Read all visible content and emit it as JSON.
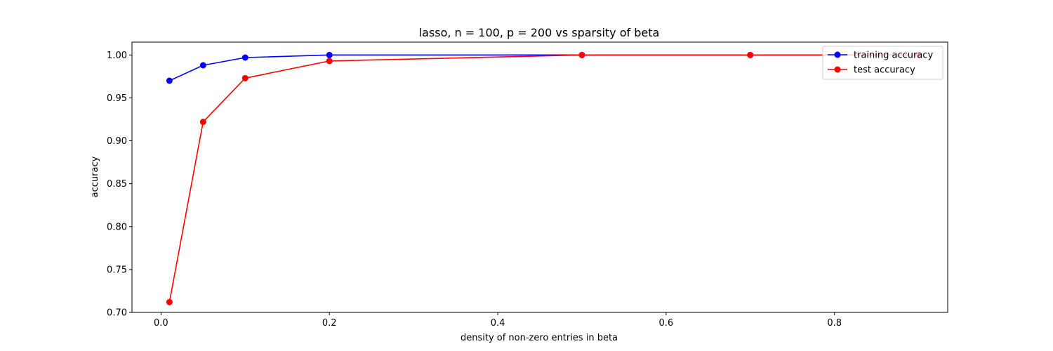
{
  "chart_data": {
    "type": "line",
    "title": "lasso, n = 100, p = 200 vs sparsity of beta",
    "xlabel": "density of non-zero entries in beta",
    "ylabel": "accuracy",
    "xlim": [
      -0.0345,
      0.9345
    ],
    "ylim": [
      0.7,
      1.015
    ],
    "x_ticks": [
      "0.0",
      "0.2",
      "0.4",
      "0.6",
      "0.8"
    ],
    "y_ticks": [
      "0.70",
      "0.75",
      "0.80",
      "0.85",
      "0.90",
      "0.95",
      "1.00"
    ],
    "grid": false,
    "legend": "top-right",
    "series": [
      {
        "name": "training accuracy",
        "color": "#0000ff",
        "marker": "circle",
        "x": [
          0.01,
          0.05,
          0.1,
          0.2,
          0.5,
          0.7,
          0.9
        ],
        "y": [
          0.97,
          0.988,
          0.997,
          1.0,
          1.0,
          1.0,
          1.0
        ]
      },
      {
        "name": "test accuracy",
        "color": "#ff0000",
        "marker": "circle",
        "x": [
          0.01,
          0.05,
          0.1,
          0.2,
          0.5,
          0.7,
          0.9
        ],
        "y": [
          0.712,
          0.922,
          0.973,
          0.993,
          1.0,
          1.0,
          1.0
        ]
      }
    ]
  }
}
